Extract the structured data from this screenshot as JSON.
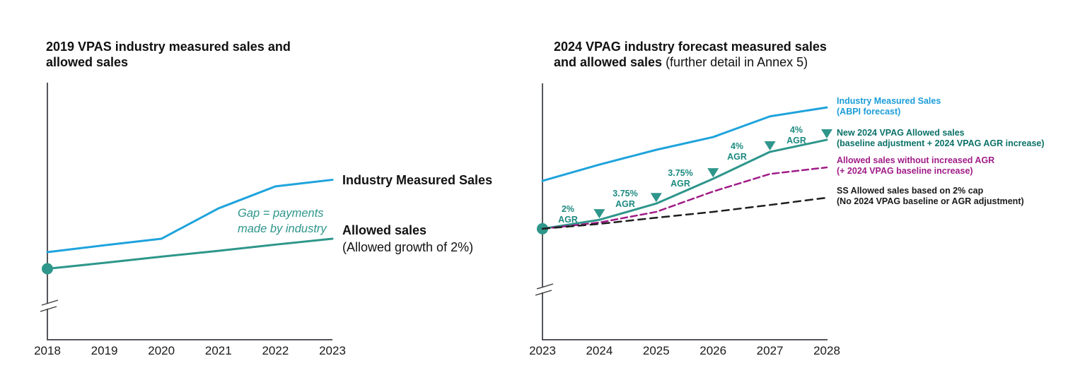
{
  "page": {
    "background": "#FFFFFF"
  },
  "colors": {
    "measured_blue": "#1FA3DC",
    "allowed_teal": "#2E968B",
    "legend_blue": "#1B9DD9",
    "legend_teal": "#0B7168",
    "magenta": "#A01C87",
    "near_black": "#1A1A1A",
    "axis_gray": "#54565B",
    "agr_text_teal": "#1D8A80"
  },
  "chart_data": [
    {
      "type": "line",
      "title_lines": [
        "2019 VPAS industry measured sales and",
        "allowed sales"
      ],
      "x": [
        2018,
        2019,
        2020,
        2021,
        2022,
        2023
      ],
      "x_labels": [
        "2018",
        "2019",
        "2020",
        "2021",
        "2022",
        "2023"
      ],
      "ylim": [
        75,
        150
      ],
      "y_axis_break": true,
      "grid": false,
      "series": [
        {
          "name": "Industry Measured Sales",
          "color": "#1FA3DC",
          "style": "solid",
          "width": 3,
          "values": [
            100.4,
            102.4,
            104.3,
            113.1,
            119.5,
            121.4
          ]
        },
        {
          "name": "Allowed sales (Allowed growth of 2%)",
          "color": "#2E968B",
          "style": "solid",
          "width": 3,
          "start_dot": true,
          "values": [
            95.6,
            97.3,
            99.1,
            100.8,
            102.6,
            104.3
          ]
        }
      ],
      "series_end_labels": {
        "measured": "Industry Measured Sales",
        "allowed_bold": "Allowed sales",
        "allowed_note": "(Allowed growth of 2%)"
      },
      "annotation": {
        "line1": "Gap = payments",
        "line2": "made by industry"
      }
    },
    {
      "type": "line",
      "title_lines_bold": [
        "2024 VPAG industry forecast measured sales",
        "and allowed sales"
      ],
      "title_suffix_regular": " (further detail in Annex 5)",
      "x": [
        2023,
        2024,
        2025,
        2026,
        2027,
        2028
      ],
      "x_labels": [
        "2023",
        "2024",
        "2025",
        "2026",
        "2027",
        "2028"
      ],
      "ylim": [
        75,
        150
      ],
      "y_axis_break": true,
      "grid": false,
      "series": [
        {
          "name": "Industry Measured Sales (ABPI forecast)",
          "color": "#1FA3DC",
          "style": "solid",
          "width": 3,
          "values": [
            121.1,
            125.8,
            130.1,
            133.8,
            139.8,
            142.4
          ]
        },
        {
          "name": "New 2024 VPAG Allowed sales (baseline adjustment + 2024 VPAG AGR increase)",
          "color": "#2E968B",
          "style": "solid",
          "width": 3,
          "start_dot": true,
          "values": [
            107.2,
            109.8,
            114.5,
            121.7,
            129.5,
            133.0
          ]
        },
        {
          "name": "Allowed sales without increased AGR (+ 2024 VPAG baseline increase)",
          "color": "#A01C87",
          "style": "dashed",
          "dash": "9 5",
          "width": 2.5,
          "values": [
            107.2,
            109.0,
            112.1,
            118.0,
            123.1,
            125.0
          ]
        },
        {
          "name": "SS Allowed sales based on 2% cap (No 2024 VPAG baseline or AGR adjustment)",
          "color": "#1E1E1E",
          "style": "dashed",
          "dash": "10 7",
          "width": 2.5,
          "values": [
            107.2,
            108.6,
            110.4,
            112.1,
            114.1,
            116.2
          ]
        }
      ],
      "markers": [
        {
          "year": 2024,
          "rate": "2%"
        },
        {
          "year": 2025,
          "rate": "3.75%"
        },
        {
          "year": 2026,
          "rate": "3.75%"
        },
        {
          "year": 2027,
          "rate": "4%"
        },
        {
          "year": 2028,
          "rate": "4%"
        }
      ],
      "agr_label": "AGR",
      "legend": [
        {
          "line1": "Industry Measured Sales",
          "line2": "(ABPI forecast)",
          "color": "#1B9DD9"
        },
        {
          "line1": "New 2024 VPAG Allowed sales",
          "line2": "(baseline adjustment + 2024 VPAG AGR increase)",
          "color": "#0B7168"
        },
        {
          "line1": "Allowed sales without increased AGR",
          "line2": "(+ 2024 VPAG baseline increase)",
          "color": "#A01C87"
        },
        {
          "line1": "SS Allowed sales based on 2% cap",
          "line2": "(No 2024 VPAG baseline or AGR adjustment)",
          "color": "#1A1A1A"
        }
      ]
    }
  ]
}
